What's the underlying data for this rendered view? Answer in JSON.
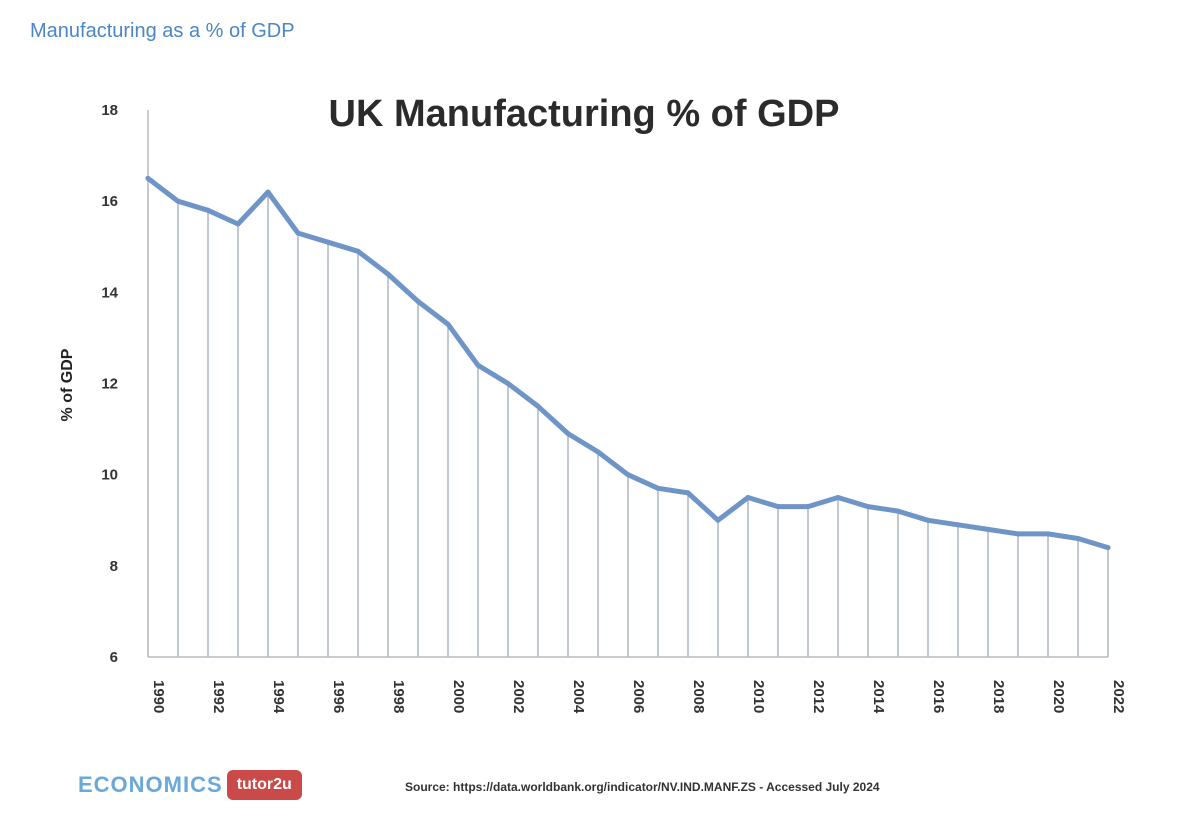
{
  "page": {
    "heading": "Manufacturing as a % of GDP",
    "source": "Source: https://data.worldbank.org/indicator/NV.IND.MANF.ZS - Accessed July 2024",
    "logo": {
      "text": "ECONOMICS",
      "badge": "tutor2u"
    }
  },
  "colors": {
    "line": "#6f95c8",
    "grid": "#9aa4b4",
    "heading": "#4a86c8"
  },
  "chart_data": {
    "type": "line",
    "title": "UK Manufacturing % of GDP",
    "xlabel": "",
    "ylabel": "% of GDP",
    "ylim": [
      6,
      18
    ],
    "yticks": [
      6,
      8,
      10,
      12,
      14,
      16,
      18
    ],
    "xtick_labels": [
      "1990",
      "1992",
      "1994",
      "1996",
      "1998",
      "2000",
      "2002",
      "2004",
      "2006",
      "2008",
      "2010",
      "2012",
      "2014",
      "2016",
      "2018",
      "2020",
      "2022"
    ],
    "grid": "vertical lines at each year",
    "legend": "none",
    "series": [
      {
        "x": [
          1990,
          1991,
          1992,
          1993,
          1994,
          1995,
          1996,
          1997,
          1998,
          1999,
          2000,
          2001,
          2002,
          2003,
          2004,
          2005,
          2006,
          2007,
          2008,
          2009,
          2010,
          2011,
          2012,
          2013,
          2014,
          2015,
          2016,
          2017,
          2018,
          2019,
          2020,
          2021,
          2022
        ],
        "values": [
          16.5,
          16.0,
          15.8,
          15.5,
          16.2,
          15.3,
          15.1,
          14.9,
          14.4,
          13.8,
          13.3,
          12.4,
          12.0,
          11.5,
          10.9,
          10.5,
          10.0,
          9.7,
          9.6,
          9.0,
          9.5,
          9.3,
          9.3,
          9.5,
          9.3,
          9.2,
          9.0,
          8.9,
          8.8,
          8.7,
          8.7,
          8.6,
          8.4
        ]
      }
    ]
  }
}
